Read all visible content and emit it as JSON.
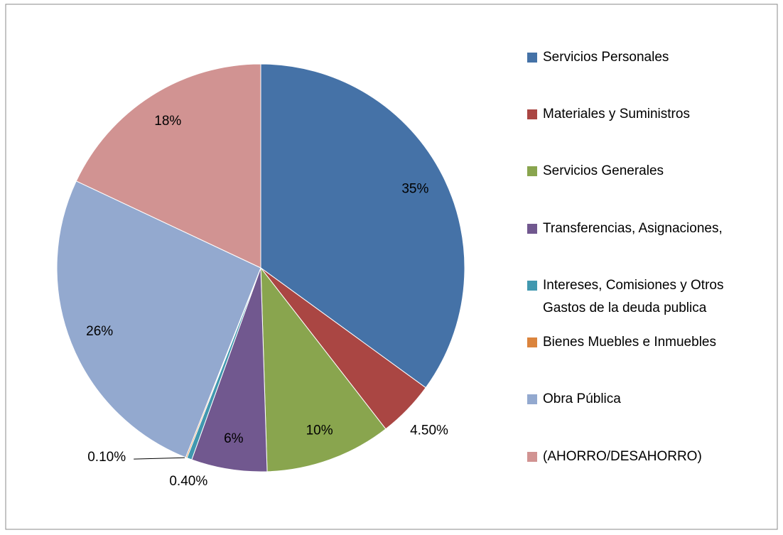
{
  "chart_data": {
    "type": "pie",
    "categories": [
      "Servicios Personales",
      "Materiales y Suministros",
      "Servicios Generales",
      "Transferencias, Asignaciones,",
      "Intereses, Comisiones y Otros Gastos de la deuda publica",
      "Bienes Muebles e Inmuebles",
      "Obra Pública",
      "(AHORRO/DESAHORRO)"
    ],
    "values": [
      35,
      4.5,
      10,
      6,
      0.4,
      0.1,
      26,
      18
    ],
    "value_labels": [
      "35%",
      "4.50%",
      "10%",
      "6%",
      "0.40%",
      "0.10%",
      "26%",
      "18%"
    ],
    "colors": [
      "#4572a7",
      "#aa4643",
      "#89a54e",
      "#71588f",
      "#4198af",
      "#db843d",
      "#93a9cf",
      "#d19392"
    ],
    "legend": "right"
  }
}
